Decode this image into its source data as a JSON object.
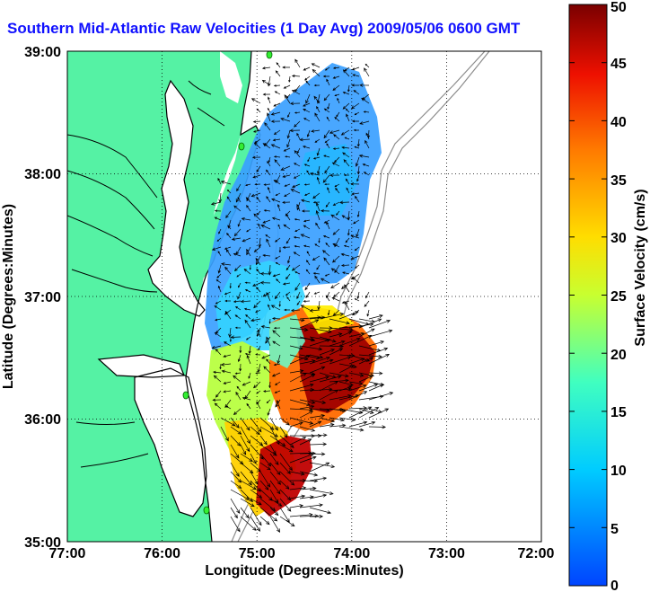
{
  "title": "Southern Mid-Atlantic Raw Velocities (1 Day Avg) 2009/05/06 0600 GMT",
  "map": {
    "x_label": "Longitude (Degrees:Minutes)",
    "y_label": "Latitude (Degrees:Minutes)",
    "lon_range": [
      -77,
      -72
    ],
    "lat_range": [
      35,
      39
    ],
    "x_ticks": [
      "77:00",
      "76:00",
      "75:00",
      "74:00",
      "73:00",
      "72:00"
    ],
    "y_ticks": [
      "39:00",
      "38:00",
      "37:00",
      "36:00",
      "35:00"
    ],
    "grid": "dotted",
    "colors": {
      "land": "#55f2a4",
      "ocean": "#ffffff",
      "coastline": "#000000",
      "bathymetry": "#8c8c8c",
      "title": "#1010ff"
    }
  },
  "colorbar": {
    "label": "Surface Velocity (cm/s)",
    "range": [
      0,
      50
    ],
    "ticks": [
      "0",
      "5",
      "10",
      "15",
      "20",
      "25",
      "30",
      "35",
      "40",
      "45",
      "50"
    ],
    "colormap": "jet"
  }
}
